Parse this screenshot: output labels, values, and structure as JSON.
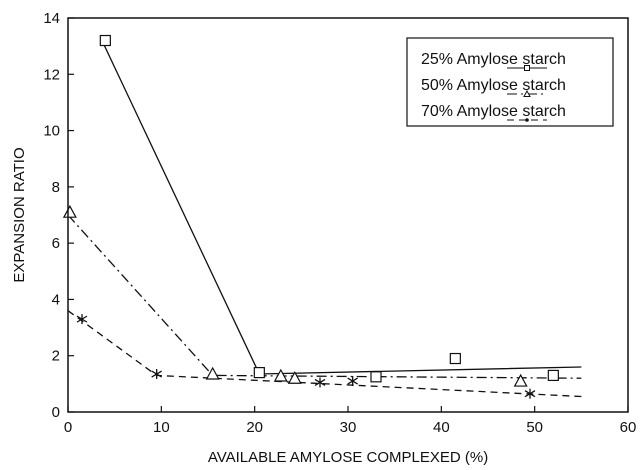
{
  "chart_data": {
    "type": "scatter",
    "title": "",
    "xlabel": "AVAILABLE AMYLOSE COMPLEXED (%)",
    "ylabel": "EXPANSION RATIO",
    "xlim": [
      0,
      60
    ],
    "ylim": [
      0,
      14
    ],
    "xticks": [
      "0",
      "10",
      "20",
      "30",
      "40",
      "50",
      "60"
    ],
    "yticks": [
      "0",
      "2",
      "4",
      "6",
      "8",
      "10",
      "12",
      "14"
    ],
    "grid": false,
    "legend_position": "top-right",
    "series": [
      {
        "name": "25% Amylose starch",
        "marker": "square",
        "line_style": "solid",
        "points": [
          [
            4,
            13.2
          ],
          [
            20.5,
            1.4
          ],
          [
            33,
            1.25
          ],
          [
            41.5,
            1.9
          ],
          [
            52,
            1.3
          ]
        ],
        "fit_line": [
          [
            3.5,
            13.3
          ],
          [
            20.5,
            1.35
          ],
          [
            55,
            1.6
          ]
        ]
      },
      {
        "name": "50% Amylose starch",
        "marker": "triangle",
        "line_style": "dashdot",
        "points": [
          [
            0.2,
            7.1
          ],
          [
            15.5,
            1.35
          ],
          [
            22.8,
            1.28
          ],
          [
            24.3,
            1.2
          ],
          [
            48.5,
            1.1
          ]
        ],
        "fit_line": [
          [
            0,
            7.0
          ],
          [
            15.5,
            1.3
          ],
          [
            55,
            1.2
          ]
        ]
      },
      {
        "name": "70% Amylose starch",
        "marker": "asterisk",
        "line_style": "dashed",
        "points": [
          [
            1.5,
            3.3
          ],
          [
            9.5,
            1.35
          ],
          [
            27,
            1.05
          ],
          [
            30.5,
            1.1
          ],
          [
            49.5,
            0.65
          ]
        ],
        "fit_line": [
          [
            0,
            3.6
          ],
          [
            9.5,
            1.3
          ],
          [
            55,
            0.55
          ]
        ]
      }
    ]
  }
}
